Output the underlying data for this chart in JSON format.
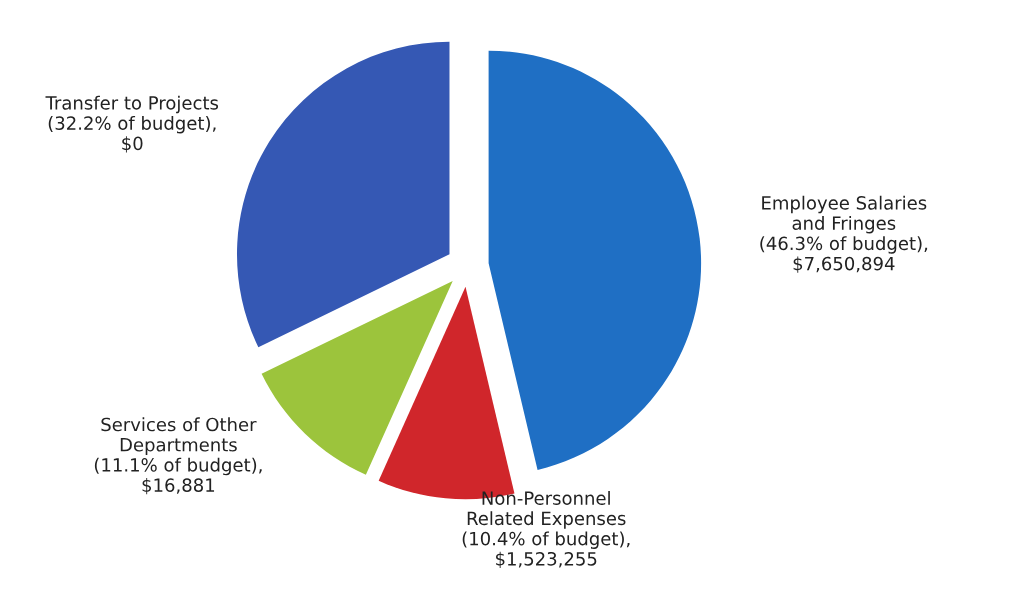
{
  "chart_data": {
    "type": "pie",
    "categories": [
      "Employee Salaries\nand Fringes",
      "Non-Personnel\nRelated Expenses",
      "Services of Other\nDepartments",
      "Transfer to Projects"
    ],
    "values": [
      46.3,
      10.4,
      11.1,
      32.2
    ],
    "value_labels": [
      "(46.3% of budget),\n$7,650,894",
      "(10.4% of budget),\n$1,523,255",
      "(11.1% of budget),\n$16,881",
      "(32.2% of budget),\n$0"
    ],
    "colors": [
      "#1f6fc4",
      "#d0262b",
      "#9cc43c",
      "#3558b4"
    ],
    "legend": false
  }
}
